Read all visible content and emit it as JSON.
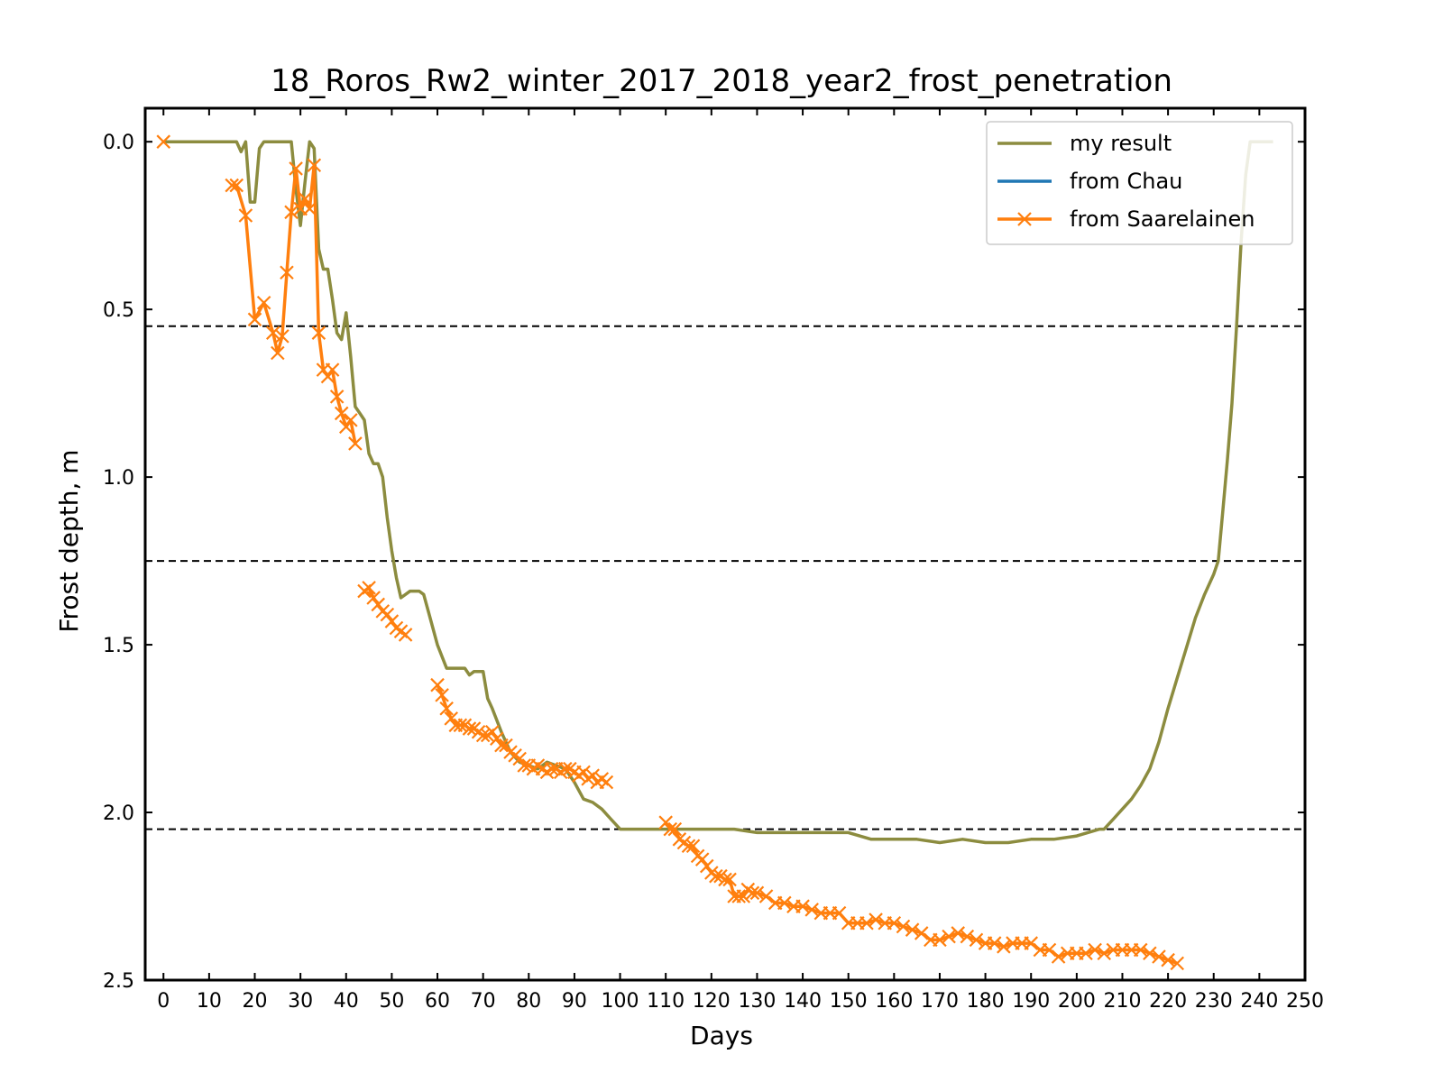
{
  "chart_data": {
    "type": "line",
    "title": "18_Roros_Rw2_winter_2017_2018_year2_frost_penetration",
    "xlabel": "Days",
    "ylabel": "Frost depth, m",
    "xlim": [
      -4,
      250
    ],
    "ylim": [
      2.5,
      -0.1
    ],
    "y_inverted": true,
    "x_ticks": [
      0,
      10,
      20,
      30,
      40,
      50,
      60,
      70,
      80,
      90,
      100,
      110,
      120,
      130,
      140,
      150,
      160,
      170,
      180,
      190,
      200,
      210,
      220,
      230,
      240,
      250
    ],
    "y_ticks": [
      0.0,
      0.5,
      1.0,
      1.5,
      2.0,
      2.5
    ],
    "y_tick_labels": [
      "0.0",
      "0.5",
      "1.0",
      "1.5",
      "2.0",
      "2.5"
    ],
    "grid": false,
    "legend_position": "top-right",
    "reference_lines": [
      0.55,
      1.25,
      2.05
    ],
    "reference_line_color": "#000000",
    "series": [
      {
        "name": "my result",
        "color": "#8c8c3f",
        "marker": "none",
        "x": [
          0,
          10,
          16,
          17,
          18,
          19,
          20,
          21,
          22,
          24,
          26,
          28,
          29,
          30,
          31,
          32,
          33,
          34,
          35,
          36,
          37,
          38,
          39,
          40,
          41,
          42,
          43,
          44,
          45,
          46,
          47,
          48,
          49,
          50,
          51,
          52,
          54,
          56,
          57,
          58,
          60,
          62,
          64,
          66,
          67,
          68,
          70,
          71,
          72,
          74,
          76,
          78,
          80,
          82,
          84,
          86,
          88,
          90,
          92,
          94,
          96,
          98,
          100,
          105,
          110,
          115,
          120,
          125,
          130,
          135,
          140,
          145,
          150,
          155,
          160,
          165,
          170,
          175,
          180,
          185,
          190,
          195,
          200,
          205,
          206,
          208,
          210,
          212,
          214,
          216,
          218,
          220,
          222,
          224,
          226,
          228,
          230,
          231,
          232,
          233,
          234,
          235,
          236,
          237,
          238,
          240,
          243
        ],
        "y": [
          0.0,
          0.0,
          0.0,
          0.03,
          0.0,
          0.18,
          0.18,
          0.02,
          0.0,
          0.0,
          0.0,
          0.0,
          0.14,
          0.25,
          0.12,
          0.0,
          0.02,
          0.32,
          0.38,
          0.38,
          0.47,
          0.57,
          0.59,
          0.51,
          0.64,
          0.79,
          0.81,
          0.83,
          0.93,
          0.96,
          0.96,
          1.0,
          1.12,
          1.22,
          1.3,
          1.36,
          1.34,
          1.34,
          1.35,
          1.4,
          1.5,
          1.57,
          1.57,
          1.57,
          1.59,
          1.58,
          1.58,
          1.66,
          1.69,
          1.76,
          1.82,
          1.85,
          1.86,
          1.87,
          1.85,
          1.86,
          1.87,
          1.91,
          1.96,
          1.97,
          1.99,
          2.02,
          2.05,
          2.05,
          2.05,
          2.05,
          2.05,
          2.05,
          2.06,
          2.06,
          2.06,
          2.06,
          2.06,
          2.08,
          2.08,
          2.08,
          2.09,
          2.08,
          2.09,
          2.09,
          2.08,
          2.08,
          2.07,
          2.05,
          2.05,
          2.02,
          1.99,
          1.96,
          1.92,
          1.87,
          1.79,
          1.69,
          1.6,
          1.51,
          1.42,
          1.35,
          1.29,
          1.25,
          1.1,
          0.95,
          0.78,
          0.55,
          0.3,
          0.1,
          0.0,
          0.0,
          0.0
        ]
      },
      {
        "name": "from Chau",
        "color": "#1f77b4",
        "marker": "none",
        "x": [],
        "y": []
      },
      {
        "name": "from Saarelainen",
        "color": "#ff7f0e",
        "marker": "x",
        "segments": [
          {
            "x": [
              0
            ],
            "y": [
              0.0
            ]
          },
          {
            "x": [
              15,
              16,
              18,
              20,
              22,
              24,
              25,
              26,
              27,
              28,
              29,
              30,
              31,
              32,
              33,
              34,
              35,
              36,
              37,
              38,
              39,
              40,
              41,
              42
            ],
            "y": [
              0.13,
              0.13,
              0.22,
              0.53,
              0.48,
              0.57,
              0.63,
              0.58,
              0.39,
              0.21,
              0.08,
              0.2,
              0.17,
              0.2,
              0.07,
              0.57,
              0.68,
              0.7,
              0.68,
              0.76,
              0.81,
              0.85,
              0.83,
              0.9
            ]
          },
          {
            "x": [
              44,
              45,
              46,
              47,
              48,
              49,
              50,
              51,
              52,
              53
            ],
            "y": [
              1.34,
              1.33,
              1.36,
              1.38,
              1.4,
              1.41,
              1.43,
              1.45,
              1.46,
              1.47
            ]
          },
          {
            "x": [
              60,
              61,
              62,
              63,
              64,
              65,
              66,
              67,
              68,
              69,
              70,
              71,
              72,
              73,
              74,
              75,
              76,
              77,
              78,
              79,
              80,
              81,
              82,
              83,
              84,
              85,
              86,
              87,
              88,
              89,
              90,
              91,
              92,
              93,
              94,
              95,
              96,
              97
            ],
            "y": [
              1.62,
              1.65,
              1.69,
              1.72,
              1.74,
              1.74,
              1.74,
              1.75,
              1.75,
              1.76,
              1.77,
              1.77,
              1.76,
              1.78,
              1.8,
              1.8,
              1.82,
              1.83,
              1.84,
              1.86,
              1.86,
              1.87,
              1.86,
              1.87,
              1.88,
              1.87,
              1.87,
              1.88,
              1.87,
              1.87,
              1.88,
              1.89,
              1.88,
              1.9,
              1.89,
              1.91,
              1.9,
              1.91
            ]
          },
          {
            "x": [
              110,
              111,
              112,
              113,
              114,
              115,
              116,
              117,
              118,
              119,
              120,
              121,
              122,
              123,
              124,
              125,
              126,
              127,
              128,
              129,
              130,
              132,
              134,
              136,
              138,
              140,
              142,
              144,
              146,
              148,
              150,
              152,
              154,
              156,
              158,
              160,
              162,
              164,
              166,
              168,
              170,
              172,
              174,
              176,
              178,
              180,
              182,
              184,
              186,
              188,
              190,
              192,
              194,
              196,
              198,
              200,
              202,
              204,
              206,
              208,
              210,
              212,
              214,
              216,
              218,
              220,
              222
            ],
            "y": [
              2.03,
              2.05,
              2.05,
              2.08,
              2.09,
              2.1,
              2.1,
              2.13,
              2.14,
              2.16,
              2.18,
              2.19,
              2.19,
              2.2,
              2.2,
              2.25,
              2.25,
              2.25,
              2.23,
              2.24,
              2.24,
              2.25,
              2.27,
              2.27,
              2.28,
              2.28,
              2.29,
              2.3,
              2.3,
              2.3,
              2.33,
              2.33,
              2.33,
              2.32,
              2.33,
              2.33,
              2.34,
              2.35,
              2.36,
              2.38,
              2.38,
              2.37,
              2.36,
              2.37,
              2.38,
              2.39,
              2.39,
              2.4,
              2.39,
              2.39,
              2.39,
              2.41,
              2.41,
              2.43,
              2.42,
              2.42,
              2.42,
              2.41,
              2.42,
              2.41,
              2.41,
              2.41,
              2.41,
              2.42,
              2.43,
              2.44,
              2.45
            ]
          }
        ]
      }
    ]
  }
}
